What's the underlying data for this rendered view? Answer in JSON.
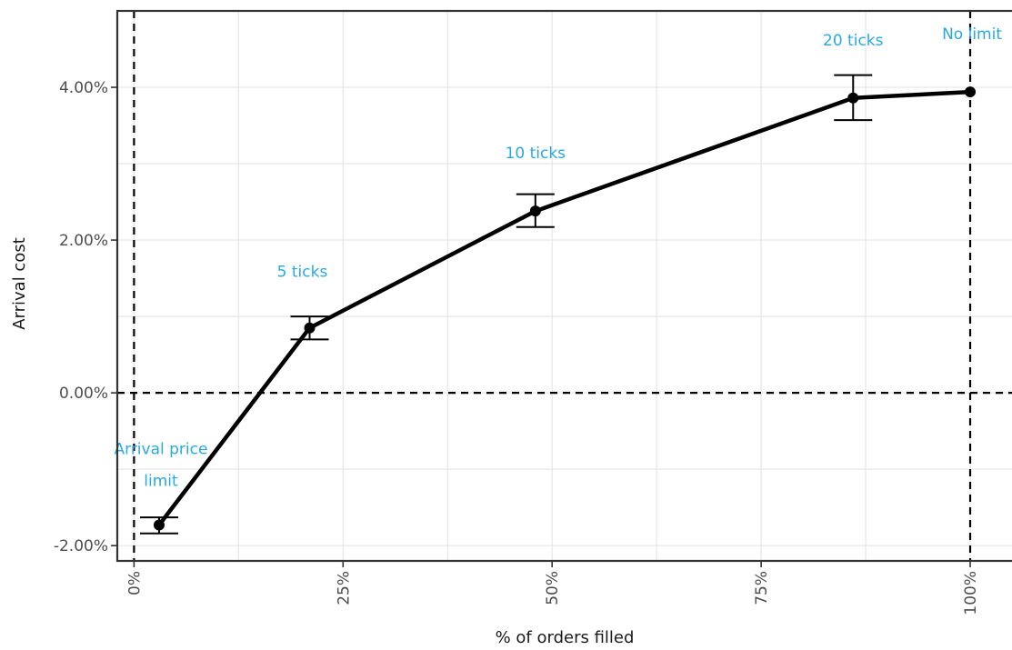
{
  "chart_data": {
    "type": "line",
    "xlabel": "% of orders filled",
    "ylabel": "Arrival cost",
    "xlim": [
      -0.02,
      1.05
    ],
    "ylim": [
      -2.2,
      5.0
    ],
    "x_ticks": [
      {
        "value": 0,
        "label": "0%"
      },
      {
        "value": 0.25,
        "label": "25%"
      },
      {
        "value": 0.5,
        "label": "50%"
      },
      {
        "value": 0.75,
        "label": "75%"
      },
      {
        "value": 1.0,
        "label": "100%"
      }
    ],
    "y_ticks": [
      {
        "value": -2,
        "label": "-2.00%"
      },
      {
        "value": 0,
        "label": "0.00%"
      },
      {
        "value": 2,
        "label": "2.00%"
      },
      {
        "value": 4,
        "label": "4.00%"
      }
    ],
    "grid": true,
    "reference_lines": {
      "vertical": [
        0,
        1.0
      ],
      "horizontal": [
        0
      ]
    },
    "points": [
      {
        "x": 0.03,
        "y": -1.73,
        "lower": -1.84,
        "upper": -1.63,
        "label_lines": [
          "Arrival price",
          "limit"
        ]
      },
      {
        "x": 0.21,
        "y": 0.85,
        "lower": 0.7,
        "upper": 1.0,
        "label_lines": [
          "5 ticks"
        ]
      },
      {
        "x": 0.48,
        "y": 2.38,
        "lower": 2.17,
        "upper": 2.6,
        "label_lines": [
          "10 ticks"
        ]
      },
      {
        "x": 0.86,
        "y": 3.86,
        "lower": 3.57,
        "upper": 4.16,
        "label_lines": [
          "20 ticks"
        ]
      },
      {
        "x": 1.0,
        "y": 3.94,
        "lower": null,
        "upper": null,
        "label_lines": [
          "No limit"
        ]
      }
    ]
  },
  "colors": {
    "line": "#000000",
    "label": "#29a9e0",
    "grid": "#e6e6e6",
    "frame": "#333333"
  }
}
